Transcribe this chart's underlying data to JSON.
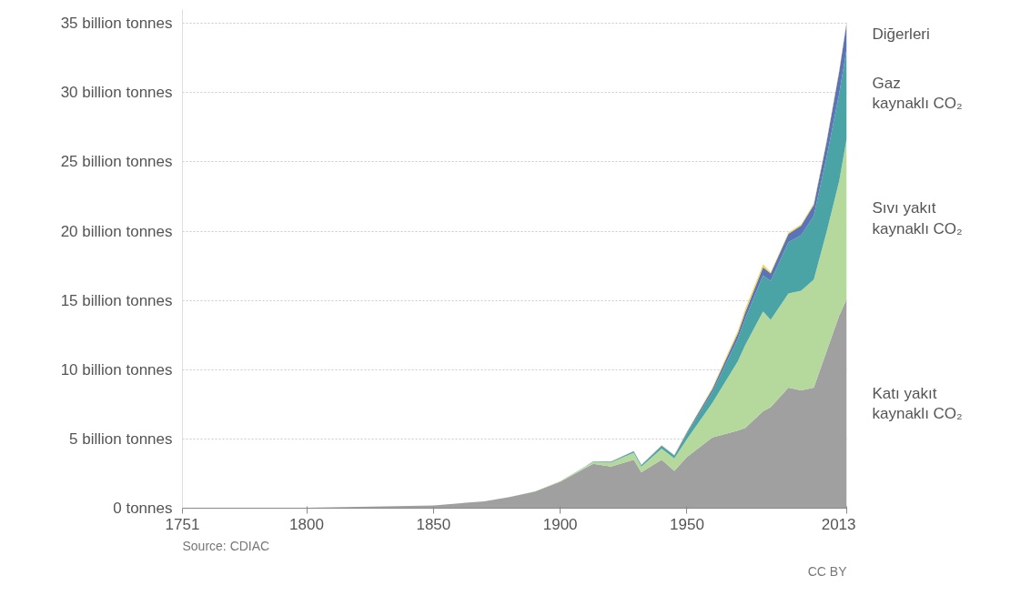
{
  "chart_data": {
    "type": "area",
    "stacked": true,
    "x": [
      1751,
      1800,
      1850,
      1870,
      1880,
      1890,
      1900,
      1910,
      1913,
      1920,
      1929,
      1932,
      1940,
      1945,
      1950,
      1960,
      1970,
      1973,
      1980,
      1983,
      1990,
      1995,
      2000,
      2005,
      2010,
      2013
    ],
    "series": [
      {
        "name": "Katı yakıt\nkaynaklı CO₂",
        "color": "#a0a0a0",
        "values": [
          0.01,
          0.03,
          0.2,
          0.5,
          0.8,
          1.2,
          1.9,
          2.9,
          3.2,
          3.0,
          3.5,
          2.6,
          3.5,
          2.7,
          3.7,
          5.1,
          5.6,
          5.8,
          7.0,
          7.3,
          8.7,
          8.5,
          8.7,
          11.3,
          13.9,
          15.1
        ]
      },
      {
        "name": "Sıvı yakıt\nkaynaklı CO₂",
        "color": "#b5d99c",
        "values": [
          0,
          0,
          0,
          0,
          0,
          0.02,
          0.05,
          0.1,
          0.15,
          0.3,
          0.5,
          0.4,
          0.8,
          0.9,
          1.3,
          2.5,
          5.0,
          6.0,
          7.2,
          6.3,
          6.8,
          7.2,
          7.8,
          8.6,
          9.7,
          11.6
        ]
      },
      {
        "name": "Gaz\nkaynaklı CO₂",
        "color": "#4aa4a6",
        "values": [
          0,
          0,
          0,
          0,
          0,
          0,
          0.01,
          0.02,
          0.03,
          0.05,
          0.1,
          0.1,
          0.2,
          0.2,
          0.4,
          0.8,
          1.6,
          1.9,
          2.6,
          2.8,
          3.7,
          4.0,
          4.6,
          5.4,
          6.3,
          6.5
        ]
      },
      {
        "name": "Diğerleri",
        "color": "#5b74b8",
        "values": [
          0,
          0,
          0,
          0,
          0,
          0,
          0,
          0.01,
          0.01,
          0.01,
          0.03,
          0.02,
          0.04,
          0.03,
          0.1,
          0.2,
          0.4,
          0.45,
          0.6,
          0.55,
          0.6,
          0.7,
          0.8,
          1.1,
          1.6,
          1.9
        ]
      },
      {
        "color": "#f2d55b",
        "values": [
          0,
          0,
          0,
          0,
          0,
          0,
          0,
          0,
          0,
          0,
          0,
          0,
          0.01,
          0.01,
          0.05,
          0.1,
          0.2,
          0.25,
          0.2,
          0.1,
          0.1,
          0.1,
          0.1,
          0.1,
          0.1,
          0.1
        ]
      }
    ],
    "xlim": [
      1751,
      2013
    ],
    "xticks": [
      1751,
      1800,
      1850,
      1900,
      1950,
      2013
    ],
    "ylim": [
      0,
      36
    ],
    "yticks": [
      {
        "value": 0,
        "label": "0 tonnes"
      },
      {
        "value": 5,
        "label": "5 billion tonnes"
      },
      {
        "value": 10,
        "label": "10 billion tonnes"
      },
      {
        "value": 15,
        "label": "15 billion tonnes"
      },
      {
        "value": 20,
        "label": "20 billion tonnes"
      },
      {
        "value": 25,
        "label": "25 billion tonnes"
      },
      {
        "value": 30,
        "label": "30 billion tonnes"
      },
      {
        "value": 35,
        "label": "35 billion tonnes"
      }
    ],
    "grid": "y",
    "annotations": [
      "Source: CDIAC",
      "CC BY"
    ]
  }
}
